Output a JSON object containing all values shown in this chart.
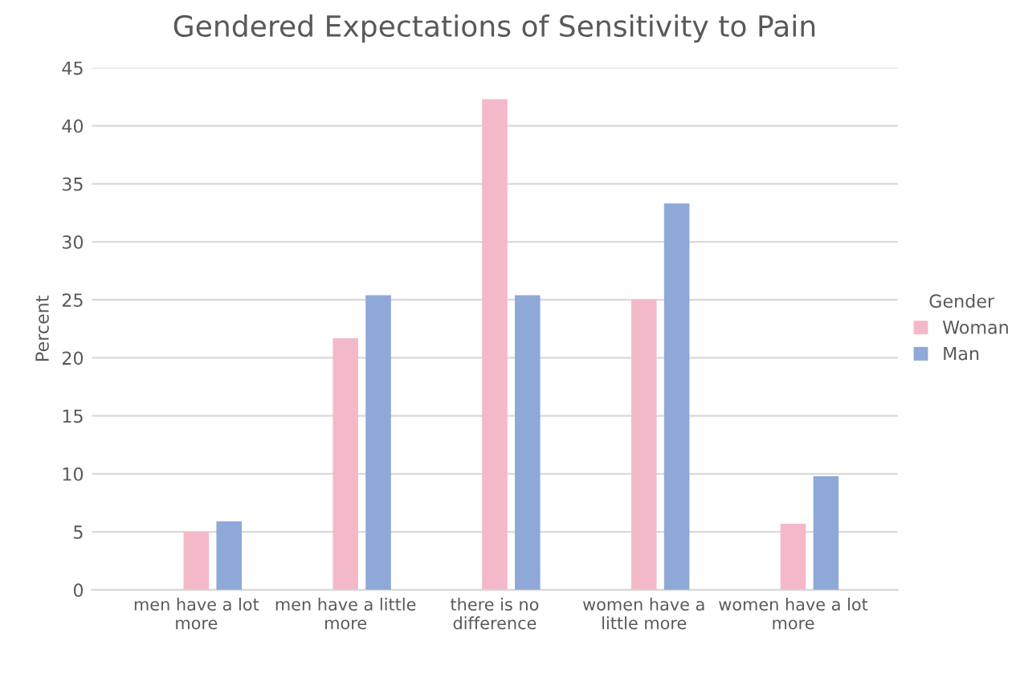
{
  "chart_data": {
    "type": "bar",
    "title": "Gendered Expectations of Sensitivity to Pain",
    "ylabel": "Percent",
    "categories": [
      "men have a lot\nmore",
      "men have a little\nmore",
      "there is no\ndifference",
      "women have a\nlittle more",
      "women have a lot\nmore"
    ],
    "series": [
      {
        "name": "Woman",
        "color": "#f4b9c8",
        "values": [
          5.0,
          21.7,
          42.3,
          25.0,
          5.7
        ]
      },
      {
        "name": "Man",
        "color": "#8ea8d8",
        "values": [
          5.9,
          25.4,
          25.4,
          33.3,
          9.8
        ]
      }
    ],
    "legend_title": "Gender",
    "legend": "right",
    "ylim": [
      0,
      45
    ],
    "yticks": [
      0,
      5,
      10,
      15,
      20,
      25,
      30,
      35,
      40,
      45
    ],
    "grid": "y"
  }
}
